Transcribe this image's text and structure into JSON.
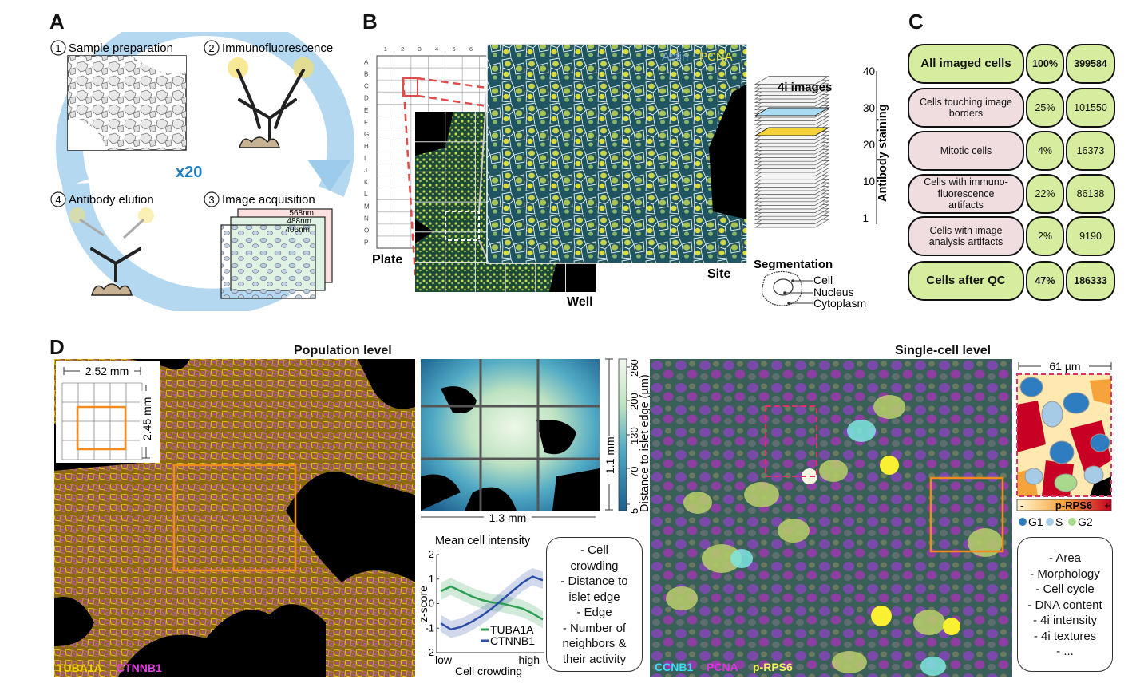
{
  "panels": {
    "a": "A",
    "b": "B",
    "c": "C",
    "d": "D"
  },
  "panel_a": {
    "step1": "1",
    "step1_label": "Sample preparation",
    "step2": "2",
    "step2_label": "Immunofluorescence",
    "step3": "3",
    "step3_label": "Image acquisition",
    "step4": "4",
    "step4_label": "Antibody elution",
    "cycles": "x20",
    "wavelengths": [
      "568nm",
      "488nm",
      "406nm"
    ],
    "colors": {
      "cycle_arrow": "#b4d8f0",
      "cycles_text": "#1c7fc4",
      "highlight": "#f5e06a"
    }
  },
  "panel_b": {
    "plate_cols": [
      "1",
      "2",
      "3",
      "4",
      "5",
      "6",
      "7"
    ],
    "plate_rows": [
      "A",
      "B",
      "C",
      "D",
      "E",
      "F",
      "G",
      "H",
      "I",
      "J",
      "K",
      "L",
      "M",
      "N",
      "O",
      "P"
    ],
    "plate_label": "Plate",
    "well_label": "Well",
    "site_label": "Site",
    "channel_actin": "Actin",
    "channel_pcna": "PCNA",
    "stack_title": "4i images",
    "stack_ticks": [
      "40",
      "30",
      "20",
      "10",
      "1"
    ],
    "stack_axis": "Antibody staining",
    "segmentation_title": "Segmentation",
    "seg_cell": "Cell",
    "seg_nucleus": "Nucleus",
    "seg_cytoplasm": "Cytoplasm"
  },
  "panel_c": {
    "rows": [
      {
        "label": "All imaged cells",
        "pct": "100%",
        "count": "399584",
        "kind": "total"
      },
      {
        "label": "Cells touching image borders",
        "pct": "25%",
        "count": "101550",
        "kind": "filter"
      },
      {
        "label": "Mitotic cells",
        "pct": "4%",
        "count": "16373",
        "kind": "filter"
      },
      {
        "label": "Cells with immuno-fluorescence artifacts",
        "pct": "22%",
        "count": "86138",
        "kind": "filter"
      },
      {
        "label": "Cells with image analysis artifacts",
        "pct": "2%",
        "count": "9190",
        "kind": "filter"
      },
      {
        "label": "Cells after QC",
        "pct": "47%",
        "count": "186333",
        "kind": "total"
      }
    ]
  },
  "panel_d": {
    "population_title": "Population level",
    "single_cell_title": "Single-cell level",
    "scale_width": "2.52 mm",
    "scale_height": "2.45 mm",
    "channel_tuba1a": "TUBA1A",
    "channel_ctnnb1": "CTNNB1",
    "map_width": "1.1 mm",
    "map_height": "1.3 mm",
    "colorbar_ticks": [
      "260",
      "200",
      "130",
      "70",
      "5"
    ],
    "colorbar_label": "Distance to islet edge (µm)",
    "crowding_plot": {
      "title": "Mean cell intensity",
      "y_label": "z-score",
      "y_ticks": [
        "2",
        "1",
        "0",
        "-1",
        "-2"
      ],
      "x_label": "Cell crowding",
      "x_low": "low",
      "x_high": "high",
      "legend": [
        "TUBA1A",
        "CTNNB1"
      ]
    },
    "population_features": [
      "- Cell",
      "crowding",
      "- Distance to",
      "islet edge",
      "- Edge",
      "- Number of",
      "neighbors &",
      "their activity"
    ],
    "channel_ccnb1": "CCNB1",
    "channel_pcna": "PCNA",
    "channel_prps6": "p-RPS6",
    "crop_scale": "61 µm",
    "prps6_minus": "-",
    "prps6_plus": "+",
    "prps6_label": "p-RPS6",
    "phase_g1": "G1",
    "phase_s": "S",
    "phase_g2": "G2",
    "single_features": [
      "- Area",
      "- Morphology",
      "- Cell cycle",
      "- DNA content",
      "- 4i intensity",
      "- 4i textures",
      "- ..."
    ],
    "colors": {
      "tuba1a": "#f2d200",
      "ctnnb1": "#e040e0",
      "ccnb1": "#33e0ff",
      "pcna": "#e62ee6",
      "prps6": "#f5f55a",
      "crop_box": "#f08c1e",
      "dashed_box": "#e0306a",
      "line_tuba1a": "#2e9e52",
      "line_ctnnb1": "#2c4ea8"
    }
  },
  "chart_data": {
    "type": "line",
    "title": "Mean cell intensity",
    "xlabel": "Cell crowding",
    "ylabel": "z-score",
    "ylim": [
      -2,
      2
    ],
    "x": [
      0,
      1,
      2,
      3,
      4,
      5,
      6,
      7,
      8,
      9,
      10
    ],
    "series": [
      {
        "name": "TUBA1A",
        "values": [
          0.5,
          0.7,
          0.5,
          0.3,
          0.15,
          0.05,
          0.0,
          -0.1,
          -0.2,
          -0.4,
          -0.65
        ]
      },
      {
        "name": "CTNNB1",
        "values": [
          -0.8,
          -1.05,
          -0.95,
          -0.75,
          -0.5,
          -0.2,
          0.15,
          0.5,
          0.85,
          1.1,
          0.95
        ]
      }
    ]
  }
}
